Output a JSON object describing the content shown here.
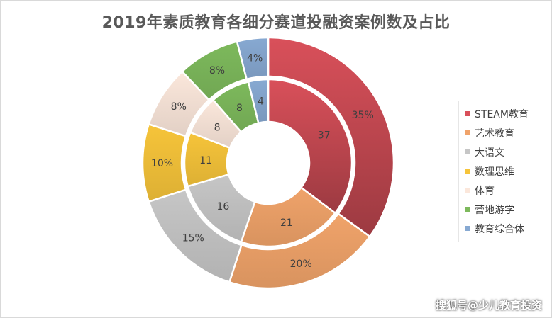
{
  "chart_data": {
    "type": "donut",
    "title": "2019年素质教育各细分赛道投融资案例数及占比",
    "categories": [
      "STEAM教育",
      "艺术教育",
      "大语文",
      "数理思维",
      "体育",
      "营地游学",
      "教育综合体"
    ],
    "series": [
      {
        "ring": "inner",
        "values": [
          37,
          21,
          16,
          11,
          8,
          8,
          4
        ]
      },
      {
        "ring": "outer",
        "values": [
          35,
          20,
          15,
          10,
          8,
          8,
          4
        ],
        "labels": [
          "35%",
          "20%",
          "15%",
          "10%",
          "8%",
          "8%",
          "4%"
        ]
      }
    ],
    "colors": [
      "#d9505a",
      "#f0a36a",
      "#c6c6c6",
      "#f6c43a",
      "#fbe7db",
      "#7db95c",
      "#87a9d2"
    ],
    "legend": "right"
  },
  "watermark": "搜狐号@少儿教育投资"
}
